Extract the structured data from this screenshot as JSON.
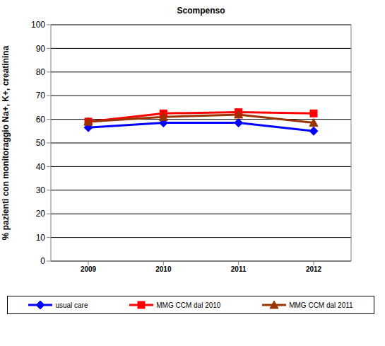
{
  "chart_data": {
    "type": "line",
    "title": "Scompenso",
    "y_label": "% pazienti con monitoraggio Na+, K+, creatinina",
    "categories": [
      "2009",
      "2010",
      "2011",
      "2012"
    ],
    "series": [
      {
        "name": "usual care",
        "color": "#0000ff",
        "marker": "diamond",
        "values": [
          56.5,
          58.5,
          58.5,
          55
        ]
      },
      {
        "name": "MMG CCM dal 2010",
        "color": "#ff0000",
        "marker": "square",
        "values": [
          59,
          62.5,
          63,
          62.5
        ]
      },
      {
        "name": "MMG CCM dal 2011",
        "color": "#993300",
        "marker": "triangle",
        "values": [
          59,
          61,
          62,
          58.5
        ]
      }
    ],
    "ylim": [
      0,
      100
    ],
    "yticks": [
      0,
      10,
      20,
      30,
      40,
      50,
      60,
      70,
      80,
      90,
      100
    ],
    "grid": true,
    "legend": "bottom"
  }
}
